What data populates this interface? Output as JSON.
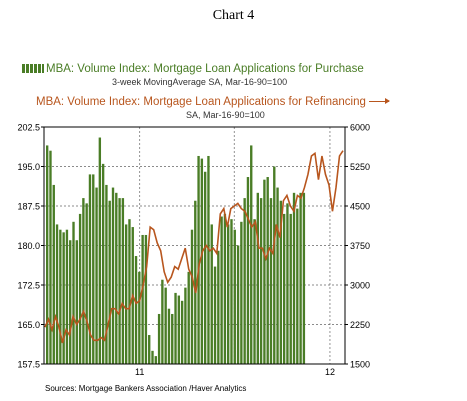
{
  "figure_title": "Chart 4",
  "legend": {
    "purchase_label": "MBA: Volume Index: Mortgage Loan Applications for Purchase",
    "purchase_sub": "3-week MovingAverage      SA, Mar-16-90=100",
    "refi_label": "MBA: Volume Index: Mortgage Loan Applications for Refinancing",
    "refi_sub": "SA, Mar-16-90=100"
  },
  "source": "Sources:  Mortgage Bankers Association /Haver Analytics",
  "colors": {
    "purchase": "#4a7d26",
    "refi": "#b8561e"
  },
  "chart_data": {
    "type": "bar",
    "x_tick_labels": [
      "11",
      "12"
    ],
    "y_left": {
      "ticks": [
        "157.5",
        "165.0",
        "172.5",
        "180.0",
        "187.5",
        "195.0",
        "202.5"
      ],
      "range": [
        157.5,
        202.5
      ]
    },
    "y_right": {
      "ticks": [
        "1500",
        "2250",
        "3000",
        "3750",
        "4500",
        "5250",
        "6000"
      ],
      "range": [
        1500,
        6000
      ]
    },
    "grid": true,
    "series": [
      {
        "name": "MBA: Volume Index: Mortgage Loan Applications for Purchase",
        "type": "bar",
        "axis": "left",
        "values": [
          199.0,
          198.0,
          191.5,
          184.0,
          183.0,
          182.5,
          183.0,
          181.0,
          184.5,
          181.0,
          186.0,
          189.0,
          188.0,
          193.5,
          193.5,
          191.0,
          200.5,
          195.5,
          191.5,
          188.5,
          191.0,
          190.0,
          189.0,
          189.0,
          184.0,
          185.0,
          183.5,
          178.0,
          175.0,
          182.0,
          182.0,
          163.0,
          160.0,
          159.0,
          167.0,
          173.5,
          172.0,
          168.0,
          167.0,
          171.0,
          170.5,
          169.5,
          172.0,
          175.0,
          183.0,
          188.5,
          197.0,
          196.5,
          194.0,
          197.0,
          184.0,
          176.0,
          179.0,
          185.5,
          186.0,
          184.0,
          185.0,
          183.0,
          180.0,
          184.5,
          189.0,
          193.0,
          199.0,
          185.0,
          190.0,
          189.0,
          192.5,
          193.0,
          189.0,
          195.0,
          191.0,
          188.5,
          186.0,
          188.0,
          186.0,
          190.0,
          187.0,
          190.0,
          190.0
        ]
      },
      {
        "name": "MBA: Volume Index: Mortgage Loan Applications for Refinancing",
        "type": "line",
        "axis": "right",
        "values": [
          2200,
          2350,
          2150,
          2400,
          2200,
          1900,
          2150,
          2050,
          2400,
          2250,
          2350,
          2500,
          2300,
          2050,
          1950,
          1950,
          2000,
          1950,
          2250,
          2550,
          2550,
          2450,
          2650,
          2550,
          2550,
          2800,
          2650,
          2700,
          3000,
          3350,
          4100,
          4050,
          3800,
          3650,
          3250,
          3050,
          3150,
          3350,
          3300,
          3500,
          3700,
          3300,
          3150,
          2850,
          3400,
          3650,
          3750,
          3650,
          3700,
          3600,
          4350,
          4450,
          4100,
          4450,
          4500,
          4550,
          4450,
          4400,
          4250,
          4100,
          4200,
          3700,
          3700,
          3500,
          3700,
          3600,
          4150,
          3900,
          4600,
          4700,
          4500,
          4400,
          4700,
          4650,
          4850,
          5100,
          5450,
          5500,
          5000,
          5450,
          5100,
          4900,
          4400,
          4850,
          5450,
          5550
        ]
      }
    ]
  }
}
